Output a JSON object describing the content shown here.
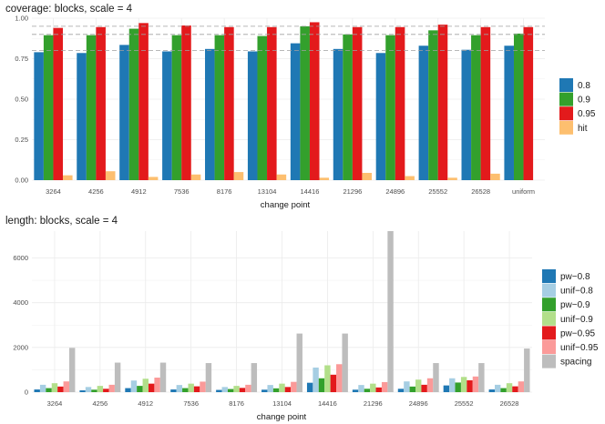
{
  "chart_data": [
    {
      "type": "bar",
      "title": "coverage: blocks, scale = 4",
      "xlabel": "change point",
      "ylabel": "",
      "categories": [
        "3264",
        "4256",
        "4912",
        "7536",
        "8176",
        "13104",
        "14416",
        "21296",
        "24896",
        "25552",
        "26528",
        "uniform"
      ],
      "ylim": [
        0,
        1.0
      ],
      "yticks": [
        "0.00",
        "0.25",
        "0.50",
        "0.75",
        "1.00"
      ],
      "reference_lines": [
        0.8,
        0.9,
        0.95
      ],
      "legend_position": "right",
      "series": [
        {
          "name": "0.8",
          "color": "#1f78b4",
          "values": [
            0.79,
            0.785,
            0.835,
            0.795,
            0.81,
            0.795,
            0.845,
            0.81,
            0.785,
            0.83,
            0.805,
            0.83
          ]
        },
        {
          "name": "0.9",
          "color": "#33a02c",
          "values": [
            0.895,
            0.895,
            0.935,
            0.895,
            0.895,
            0.89,
            0.95,
            0.9,
            0.895,
            0.925,
            0.895,
            0.905
          ]
        },
        {
          "name": "0.95",
          "color": "#e31a1c",
          "values": [
            0.94,
            0.945,
            0.97,
            0.955,
            0.945,
            0.945,
            0.975,
            0.945,
            0.945,
            0.96,
            0.945,
            0.945
          ]
        },
        {
          "name": "hit",
          "color": "#fdbf6f",
          "values": [
            0.03,
            0.055,
            0.02,
            0.035,
            0.05,
            0.035,
            0.015,
            0.045,
            0.025,
            0.015,
            0.04,
            0.0
          ]
        }
      ]
    },
    {
      "type": "bar",
      "title": "length: blocks, scale = 4",
      "xlabel": "change point",
      "ylabel": "",
      "categories": [
        "3264",
        "4256",
        "4912",
        "7536",
        "8176",
        "13104",
        "14416",
        "21296",
        "24896",
        "25552",
        "26528"
      ],
      "ylim": [
        0,
        7200
      ],
      "yticks": [
        "0",
        "2000",
        "4000",
        "6000"
      ],
      "legend_position": "right",
      "series": [
        {
          "name": "pw−0.8",
          "color": "#1f78b4",
          "values": [
            120,
            80,
            180,
            120,
            100,
            110,
            420,
            110,
            150,
            300,
            120
          ]
        },
        {
          "name": "unif−0.8",
          "color": "#a6cee3",
          "values": [
            330,
            230,
            520,
            320,
            230,
            320,
            1100,
            320,
            480,
            620,
            330
          ]
        },
        {
          "name": "pw−0.9",
          "color": "#33a02c",
          "values": [
            180,
            110,
            280,
            180,
            140,
            170,
            620,
            150,
            250,
            430,
            180
          ]
        },
        {
          "name": "unif−0.9",
          "color": "#b2df8a",
          "values": [
            400,
            280,
            600,
            380,
            280,
            380,
            1200,
            380,
            560,
            680,
            400
          ]
        },
        {
          "name": "pw−0.95",
          "color": "#e31a1c",
          "values": [
            250,
            150,
            380,
            260,
            190,
            230,
            780,
            210,
            330,
            530,
            260
          ]
        },
        {
          "name": "unif−0.95",
          "color": "#fb9a99",
          "values": [
            480,
            330,
            650,
            470,
            330,
            460,
            1250,
            450,
            620,
            700,
            480
          ]
        },
        {
          "name": "spacing",
          "color": "#bdbdbd",
          "values": [
            1980,
            1320,
            1320,
            1300,
            1300,
            2620,
            2620,
            7200,
            1300,
            1300,
            1950
          ]
        }
      ]
    }
  ]
}
